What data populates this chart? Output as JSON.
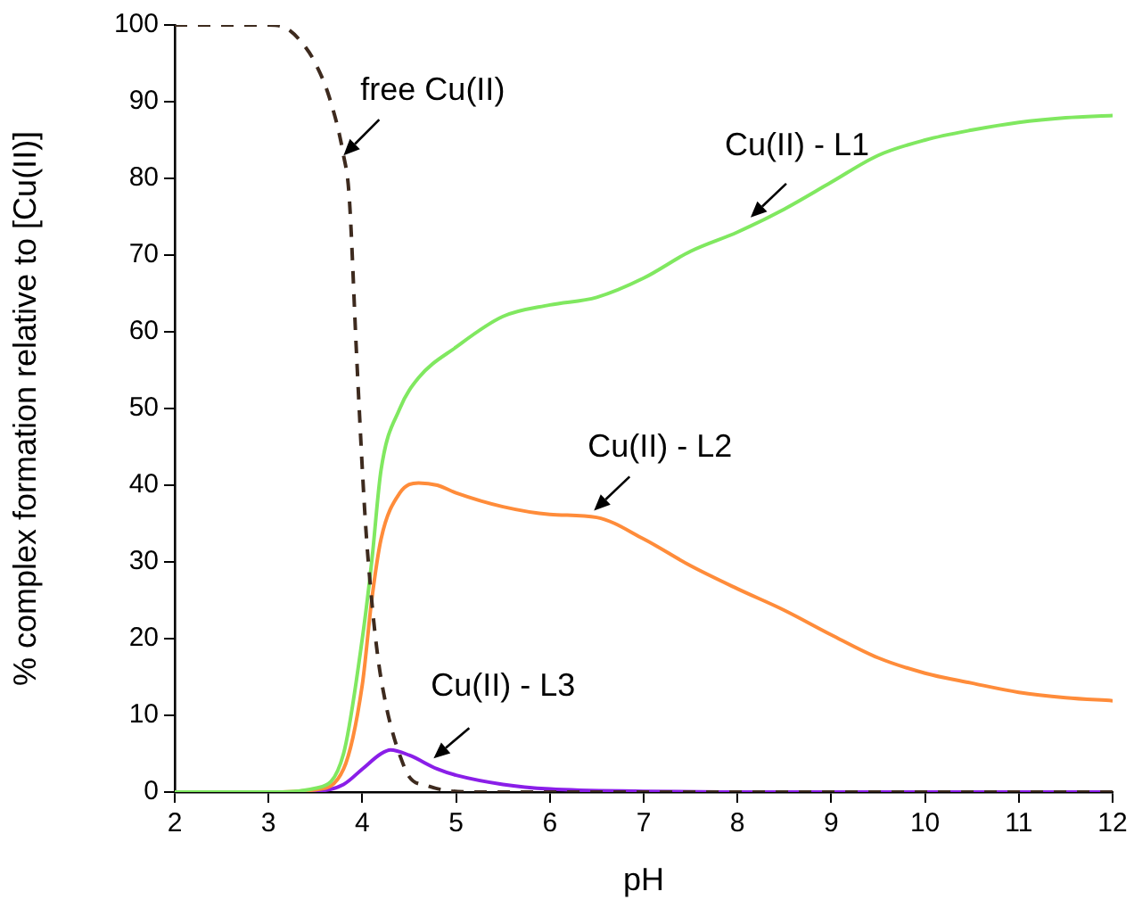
{
  "chart_data": {
    "type": "line",
    "xlabel": "pH",
    "ylabel": "% complex formation relative to [Cu(II)]",
    "xlim": [
      2,
      12
    ],
    "xticks": [
      2,
      3,
      4,
      5,
      6,
      7,
      8,
      9,
      10,
      11,
      12
    ],
    "ylim": [
      0,
      100
    ],
    "yticks": [
      0,
      10,
      20,
      30,
      40,
      50,
      60,
      70,
      80,
      90,
      100
    ],
    "grid": false,
    "legend": false,
    "marker": "none",
    "series": [
      {
        "color": "#3d2a1e",
        "line_style": "dashed",
        "x": [
          2,
          3,
          3.2,
          3.4,
          3.5,
          3.65,
          3.8,
          3.86,
          3.94,
          4.03,
          4.1,
          4.17,
          4.25,
          4.32,
          4.4,
          4.5,
          4.7,
          4.9,
          5.2,
          6,
          8,
          12
        ],
        "values": [
          100,
          100,
          99.5,
          97,
          95,
          90.5,
          83,
          77.7,
          56.7,
          35.8,
          25,
          17.2,
          11.5,
          7.9,
          4.8,
          2,
          0.8,
          0.2,
          0,
          0,
          0,
          0
        ]
      },
      {
        "color": "#80e860",
        "line_style": "solid",
        "x": [
          2,
          3,
          3.5,
          3.8,
          4,
          4.1,
          4.2,
          4.4,
          4.6,
          5,
          5.5,
          6,
          6.5,
          7,
          7.5,
          8,
          8.5,
          9,
          9.5,
          10,
          10.5,
          11,
          11.5,
          12
        ],
        "values": [
          0,
          0,
          0.5,
          5,
          20,
          30,
          42,
          50,
          54,
          58,
          62,
          63.5,
          64.5,
          67,
          70.5,
          73,
          76,
          79.5,
          83,
          85,
          86.3,
          87.3,
          87.9,
          88.2
        ]
      },
      {
        "color": "#ff8c3a",
        "line_style": "solid",
        "x": [
          2,
          3,
          3.5,
          3.8,
          4,
          4.1,
          4.2,
          4.4,
          4.6,
          4.8,
          5,
          5.5,
          6,
          6.5,
          7,
          7.5,
          8,
          8.5,
          9,
          9.5,
          10,
          10.5,
          11,
          11.5,
          12
        ],
        "values": [
          0,
          0,
          0.3,
          3,
          14,
          25,
          33,
          39,
          40.3,
          40,
          39,
          37.2,
          36.2,
          35.8,
          33,
          29.5,
          26.5,
          23.7,
          20.5,
          17.5,
          15.5,
          14.2,
          13,
          12.3,
          11.9
        ]
      },
      {
        "color": "#8a1ee8",
        "line_style": "solid",
        "x": [
          2,
          3,
          3.5,
          3.8,
          4,
          4.2,
          4.3,
          4.5,
          4.8,
          5,
          5.5,
          6,
          7,
          8,
          12
        ],
        "values": [
          0,
          0,
          0.1,
          1,
          3,
          5,
          5.5,
          4.8,
          3,
          2.2,
          1,
          0.4,
          0.1,
          0,
          0
        ]
      }
    ],
    "annotations": [
      {
        "text": "free Cu(II)",
        "x": 3.8,
        "y": 83
      },
      {
        "text": "Cu(II) - L1",
        "x": 8.14,
        "y": 74.9
      },
      {
        "text": "Cu(II) - L2",
        "x": 6.47,
        "y": 36.7
      },
      {
        "text": "Cu(II) - L3",
        "x": 4.76,
        "y": 4.4
      }
    ]
  }
}
